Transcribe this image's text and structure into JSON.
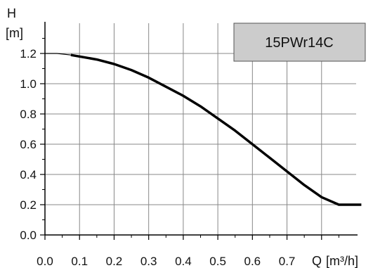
{
  "chart_data": {
    "type": "line",
    "title": "",
    "legend": {
      "label": "15PWr14C",
      "placement": "top-right",
      "fill_color": "#cccccc",
      "border_color": "#555555"
    },
    "x_axis": {
      "label_symbol": "Q",
      "label_unit": "[m³/h]",
      "ticks": [
        "0.0",
        "0.1",
        "0.2",
        "0.3",
        "0.4",
        "0.5",
        "0.6",
        "0.7"
      ],
      "range": [
        0,
        0.9
      ]
    },
    "y_axis": {
      "label_symbol": "H",
      "label_unit": "[m]",
      "ticks": [
        "0.0",
        "0.2",
        "0.4",
        "0.6",
        "0.8",
        "1.0",
        "1.2"
      ],
      "range": [
        0,
        1.4
      ]
    },
    "grid": true,
    "series": [
      {
        "color": "#000000",
        "x": [
          0.0,
          0.035,
          0.075,
          0.1,
          0.15,
          0.2,
          0.25,
          0.3,
          0.35,
          0.4,
          0.45,
          0.5,
          0.55,
          0.6,
          0.65,
          0.7,
          0.75,
          0.8,
          0.85,
          0.88,
          0.9,
          0.915
        ],
        "y": [
          1.2,
          1.2,
          1.19,
          1.18,
          1.16,
          1.13,
          1.09,
          1.04,
          0.98,
          0.92,
          0.85,
          0.77,
          0.69,
          0.6,
          0.51,
          0.42,
          0.33,
          0.25,
          0.2,
          0.2,
          0.2,
          0.2
        ],
        "thin_until_x": 0.075
      }
    ]
  }
}
